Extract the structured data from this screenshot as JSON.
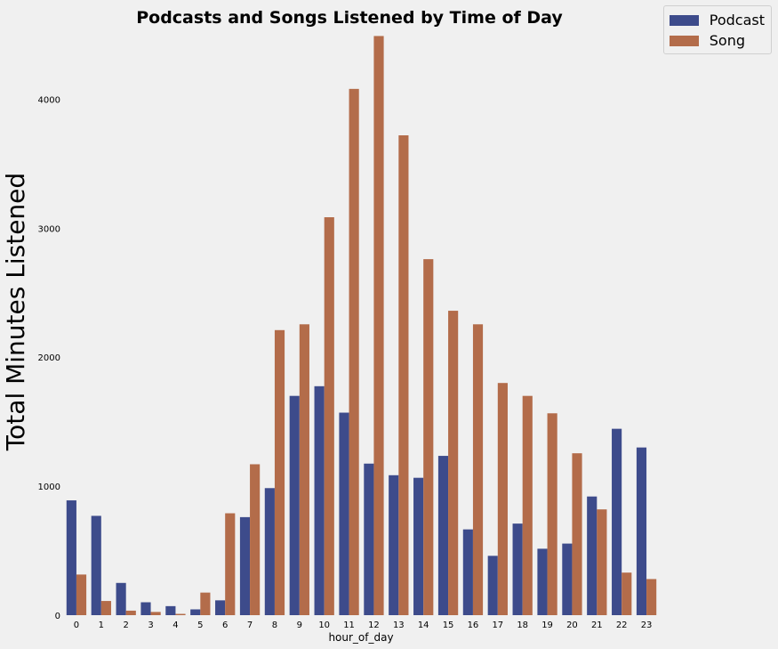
{
  "chart_data": {
    "type": "bar",
    "title": "Podcasts and Songs Listened by Time of Day",
    "xlabel": "hour_of_day",
    "ylabel": "Total Minutes Listened",
    "categories": [
      "0",
      "1",
      "2",
      "3",
      "4",
      "5",
      "6",
      "7",
      "8",
      "9",
      "10",
      "11",
      "12",
      "13",
      "14",
      "15",
      "16",
      "17",
      "18",
      "19",
      "20",
      "21",
      "22",
      "23"
    ],
    "series": [
      {
        "name": "Podcast",
        "color": "#3d4b8b",
        "values": [
          890,
          770,
          250,
          100,
          70,
          45,
          115,
          760,
          985,
          1700,
          1775,
          1570,
          1175,
          1085,
          1065,
          1235,
          665,
          460,
          710,
          515,
          555,
          920,
          1445,
          1300
        ]
      },
      {
        "name": "Song",
        "color": "#b36c4a",
        "values": [
          315,
          110,
          35,
          25,
          10,
          175,
          790,
          1170,
          2210,
          2255,
          3085,
          4080,
          4490,
          3720,
          2760,
          2360,
          2255,
          1800,
          1700,
          1565,
          1255,
          820,
          330,
          280
        ]
      }
    ],
    "yticks": [
      0,
      1000,
      2000,
      3000,
      4000
    ],
    "ylim": [
      0,
      4500
    ],
    "grid": false,
    "legend_position": "top-right"
  }
}
